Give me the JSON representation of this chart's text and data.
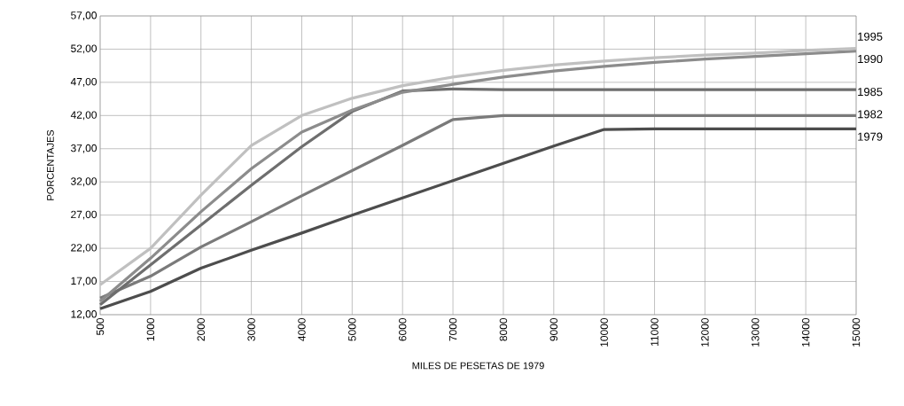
{
  "chart_data": {
    "type": "line",
    "xlabel": "MILES DE PESETAS DE 1979",
    "ylabel": "PORCENTAJES",
    "categories": [
      "500",
      "1000",
      "2000",
      "3000",
      "4000",
      "5000",
      "6000",
      "7000",
      "8000",
      "9000",
      "10000",
      "11000",
      "12000",
      "13000",
      "14000",
      "15000"
    ],
    "ylim": [
      12,
      57
    ],
    "yticks": [
      {
        "value": 12,
        "label": "12,00"
      },
      {
        "value": 17,
        "label": "17,00"
      },
      {
        "value": 22,
        "label": "22,00"
      },
      {
        "value": 27,
        "label": "27,00"
      },
      {
        "value": 32,
        "label": "32,00"
      },
      {
        "value": 37,
        "label": "37,00"
      },
      {
        "value": 42,
        "label": "42,00"
      },
      {
        "value": 47,
        "label": "47,00"
      },
      {
        "value": 52,
        "label": "52,00"
      },
      {
        "value": 57,
        "label": "57,00"
      }
    ],
    "grid": true,
    "marker": "none",
    "line_style": "solid",
    "series": [
      {
        "name": "1979",
        "color": "#4d4d4d",
        "values": [
          12.9,
          15.5,
          19.0,
          21.7,
          24.3,
          27.0,
          29.6,
          32.2,
          34.8,
          37.4,
          39.9,
          40.0,
          40.0,
          40.0,
          40.0,
          40.0
        ]
      },
      {
        "name": "1982",
        "color": "#7a7a7a",
        "values": [
          14.5,
          17.8,
          22.2,
          26.0,
          29.9,
          33.7,
          37.5,
          41.4,
          42.0,
          42.0,
          42.0,
          42.0,
          42.0,
          42.0,
          42.0,
          42.0
        ]
      },
      {
        "name": "1985",
        "color": "#6e6e6e",
        "values": [
          13.5,
          19.5,
          25.5,
          31.5,
          37.3,
          42.6,
          45.7,
          46.0,
          45.9,
          45.9,
          45.9,
          45.9,
          45.9,
          45.9,
          45.9,
          45.9
        ]
      },
      {
        "name": "1990",
        "color": "#8c8c8c",
        "values": [
          14.0,
          20.5,
          27.5,
          34.0,
          39.5,
          42.8,
          45.5,
          46.7,
          47.8,
          48.7,
          49.4,
          50.0,
          50.5,
          50.9,
          51.3,
          51.7
        ]
      },
      {
        "name": "1995",
        "color": "#c0c0c0",
        "values": [
          16.5,
          22.0,
          30.0,
          37.5,
          42.0,
          44.6,
          46.5,
          47.8,
          48.8,
          49.6,
          50.2,
          50.7,
          51.1,
          51.4,
          51.8,
          52.1
        ]
      }
    ]
  }
}
